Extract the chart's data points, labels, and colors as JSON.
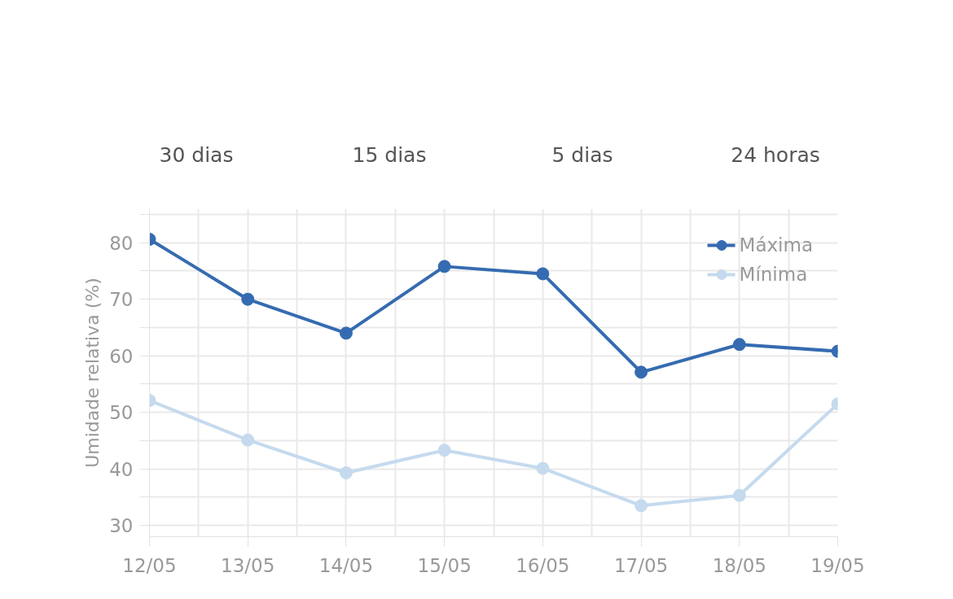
{
  "chart_data": {
    "type": "line",
    "ylabel": "Umidade relativa (%)",
    "annotations": [
      "30 dias",
      "15 dias",
      "5 dias",
      "24 horas"
    ],
    "categories": [
      "12/05",
      "13/05",
      "14/05",
      "15/05",
      "16/05",
      "17/05",
      "18/05",
      "19/05"
    ],
    "series": [
      {
        "name": "Máxima",
        "color": "#356bb0",
        "values": [
          80.6,
          70.0,
          64.0,
          75.8,
          74.5,
          57.1,
          62.0,
          60.8
        ]
      },
      {
        "name": "Mínima",
        "color": "#c5daee",
        "values": [
          52.1,
          45.1,
          39.3,
          43.3,
          40.1,
          33.5,
          35.3,
          51.5
        ]
      }
    ],
    "ylim": [
      28,
      86
    ],
    "yticks": [
      30,
      {
        "value": 35,
        "label": null
      },
      40,
      {
        "value": 45,
        "label": null
      },
      50,
      {
        "value": 55,
        "label": null
      },
      60,
      {
        "value": 65,
        "label": null
      },
      70,
      {
        "value": 75,
        "label": null
      },
      80,
      {
        "value": 85,
        "label": null
      }
    ],
    "grid": true,
    "legend": "top right",
    "marker": "circle",
    "line_style": "solid"
  }
}
